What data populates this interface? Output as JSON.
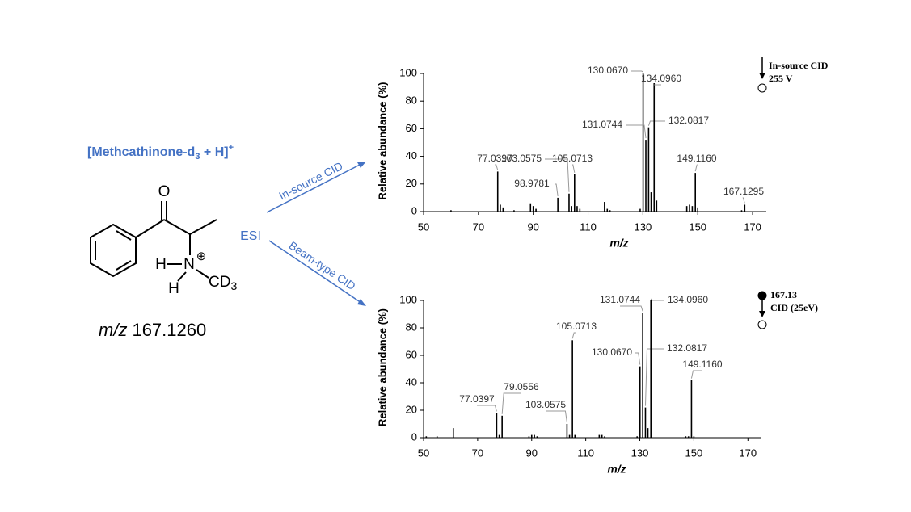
{
  "scheme": {
    "title": [
      "[Methcathinone-d",
      "3",
      " + H]",
      "+"
    ],
    "atoms": {
      "oxygen": "O",
      "hydrogen_1": "H",
      "nitrogen": "N",
      "charge": "⊕",
      "hydrogen_2": "H",
      "methyl": "CD",
      "methyl_subscript": "3"
    },
    "mz_label": "m/z",
    "mz_value": "167.1260",
    "ionization": "ESI",
    "path_1": "In-source CID",
    "path_2": "Beam-type CID"
  },
  "chart_data": [
    {
      "type": "stem",
      "x_label": "m/z",
      "y_label": "Relative abundance (%)",
      "color": "#000000",
      "xlim": [
        50,
        175
      ],
      "xticks": [
        50,
        70,
        90,
        110,
        130,
        150,
        170
      ],
      "ylim": [
        0,
        100
      ],
      "yticks": [
        0,
        20,
        40,
        60,
        80,
        100
      ],
      "x": [
        60,
        77.0397,
        78,
        79,
        83,
        89,
        90,
        91,
        98.9781,
        103.0575,
        104,
        105.0713,
        106,
        107,
        116,
        117,
        118,
        129,
        130.067,
        131.0744,
        132.0817,
        133,
        134.096,
        135,
        146,
        147,
        148,
        149.116,
        150,
        166,
        167.1295
      ],
      "values": [
        1,
        29,
        5,
        3,
        1,
        6,
        4,
        2,
        10,
        13,
        4,
        27,
        4,
        2,
        7,
        2,
        1,
        2,
        100,
        52,
        61,
        14,
        93,
        8,
        4,
        5,
        4,
        28,
        3,
        1,
        5
      ],
      "peak_labels": [
        null,
        "77.0397",
        null,
        null,
        null,
        null,
        null,
        null,
        "98.9781",
        "103.0575",
        null,
        "105.0713",
        null,
        null,
        null,
        null,
        null,
        null,
        "130.0670",
        "131.0744",
        "132.0817",
        null,
        "134.0960",
        null,
        null,
        null,
        null,
        "149.1160",
        null,
        null,
        "167.1295"
      ],
      "annotations": [
        "In-source CID",
        "255 V"
      ]
    },
    {
      "type": "stem",
      "x_label": "m/z",
      "y_label": "Relative abundance (%)",
      "color": "#000000",
      "xlim": [
        50,
        175
      ],
      "xticks": [
        50,
        70,
        90,
        110,
        130,
        150,
        170
      ],
      "ylim": [
        0,
        100
      ],
      "yticks": [
        0,
        20,
        40,
        60,
        80,
        100
      ],
      "x": [
        51,
        55,
        61,
        77.0397,
        78,
        79.0556,
        89,
        90,
        91,
        92,
        103.0575,
        104,
        105.0713,
        106,
        115,
        116,
        117,
        129,
        130.067,
        131.0744,
        132.0817,
        133,
        134.096,
        147,
        148,
        149.116,
        150
      ],
      "values": [
        1,
        1,
        7,
        18,
        2,
        16,
        1,
        2,
        2,
        1,
        10,
        2,
        71,
        2,
        2,
        2,
        1,
        1,
        52,
        91,
        22,
        7,
        100,
        1,
        1,
        42,
        1
      ],
      "peak_labels": [
        null,
        null,
        null,
        "77.0397",
        null,
        "79.0556",
        null,
        null,
        null,
        null,
        "103.0575",
        null,
        "105.0713",
        null,
        null,
        null,
        null,
        null,
        "130.0670",
        "131.0744",
        "132.0817",
        null,
        "134.0960",
        null,
        null,
        "149.1160",
        null
      ],
      "annotations": [
        "167.13",
        "CID (25eV)"
      ]
    }
  ]
}
